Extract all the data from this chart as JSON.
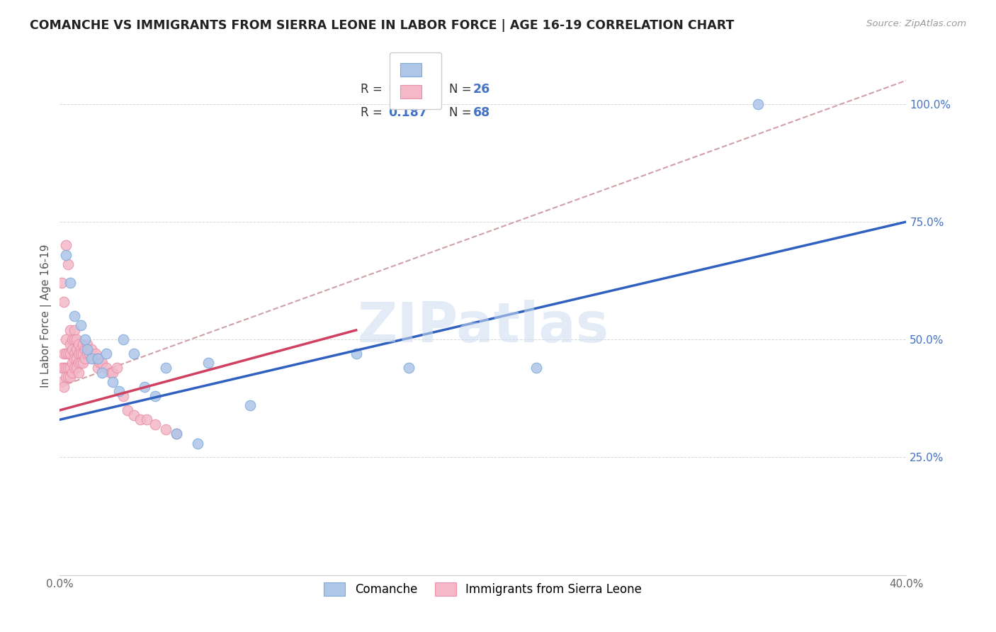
{
  "title": "COMANCHE VS IMMIGRANTS FROM SIERRA LEONE IN LABOR FORCE | AGE 16-19 CORRELATION CHART",
  "source": "Source: ZipAtlas.com",
  "ylabel": "In Labor Force | Age 16-19",
  "xlim": [
    0.0,
    0.4
  ],
  "ylim": [
    0.0,
    1.1
  ],
  "xticks": [
    0.0,
    0.1,
    0.2,
    0.3,
    0.4
  ],
  "xticklabels": [
    "0.0%",
    "",
    "",
    "",
    "40.0%"
  ],
  "ytick_positions": [
    0.25,
    0.5,
    0.75,
    1.0
  ],
  "ytick_labels": [
    "25.0%",
    "50.0%",
    "75.0%",
    "100.0%"
  ],
  "watermark": "ZIPatlas",
  "r_color": "#4472c4",
  "n_color": "#4472c4",
  "comanche_color": "#aec6e8",
  "sierra_leone_color": "#f4b8c8",
  "comanche_edge": "#7aabdc",
  "sierra_leone_edge": "#e890a8",
  "regression_blue": "#3060c0",
  "regression_pink": "#d04060",
  "dashed_line_color": "#d0a0a8",
  "blue_line_x0": 0.0,
  "blue_line_y0": 0.33,
  "blue_line_x1": 0.4,
  "blue_line_y1": 0.75,
  "pink_line_x0": 0.0,
  "pink_line_y0": 0.35,
  "pink_line_x1": 0.14,
  "pink_line_y1": 0.52,
  "dash_line_x0": 0.0,
  "dash_line_y0": 0.4,
  "dash_line_x1": 0.4,
  "dash_line_y1": 1.05,
  "comanche_data_x": [
    0.003,
    0.005,
    0.007,
    0.01,
    0.012,
    0.013,
    0.015,
    0.018,
    0.02,
    0.022,
    0.025,
    0.028,
    0.03,
    0.035,
    0.04,
    0.045,
    0.05,
    0.055,
    0.065,
    0.07,
    0.09,
    0.14,
    0.165,
    0.225,
    0.33
  ],
  "comanche_data_y": [
    0.68,
    0.62,
    0.55,
    0.53,
    0.5,
    0.48,
    0.46,
    0.46,
    0.43,
    0.47,
    0.41,
    0.39,
    0.5,
    0.47,
    0.4,
    0.38,
    0.44,
    0.3,
    0.28,
    0.45,
    0.36,
    0.47,
    0.44,
    0.44,
    1.0
  ],
  "sierra_leone_data_x": [
    0.001,
    0.001,
    0.002,
    0.002,
    0.002,
    0.003,
    0.003,
    0.003,
    0.003,
    0.004,
    0.004,
    0.004,
    0.005,
    0.005,
    0.005,
    0.005,
    0.005,
    0.006,
    0.006,
    0.006,
    0.006,
    0.007,
    0.007,
    0.007,
    0.007,
    0.007,
    0.008,
    0.008,
    0.008,
    0.008,
    0.009,
    0.009,
    0.009,
    0.009,
    0.01,
    0.01,
    0.01,
    0.011,
    0.011,
    0.011,
    0.012,
    0.012,
    0.013,
    0.013,
    0.014,
    0.015,
    0.016,
    0.017,
    0.018,
    0.018,
    0.019,
    0.02,
    0.022,
    0.024,
    0.025,
    0.027,
    0.03,
    0.032,
    0.035,
    0.038,
    0.041,
    0.045,
    0.05,
    0.055,
    0.001,
    0.002,
    0.003,
    0.004
  ],
  "sierra_leone_data_y": [
    0.44,
    0.41,
    0.47,
    0.44,
    0.4,
    0.5,
    0.47,
    0.44,
    0.42,
    0.47,
    0.44,
    0.42,
    0.52,
    0.49,
    0.47,
    0.44,
    0.42,
    0.5,
    0.48,
    0.45,
    0.43,
    0.52,
    0.5,
    0.47,
    0.46,
    0.44,
    0.5,
    0.48,
    0.46,
    0.44,
    0.49,
    0.47,
    0.45,
    0.43,
    0.48,
    0.47,
    0.45,
    0.49,
    0.47,
    0.45,
    0.48,
    0.46,
    0.49,
    0.47,
    0.47,
    0.48,
    0.46,
    0.47,
    0.46,
    0.44,
    0.45,
    0.45,
    0.44,
    0.43,
    0.43,
    0.44,
    0.38,
    0.35,
    0.34,
    0.33,
    0.33,
    0.32,
    0.31,
    0.3,
    0.62,
    0.58,
    0.7,
    0.66
  ]
}
